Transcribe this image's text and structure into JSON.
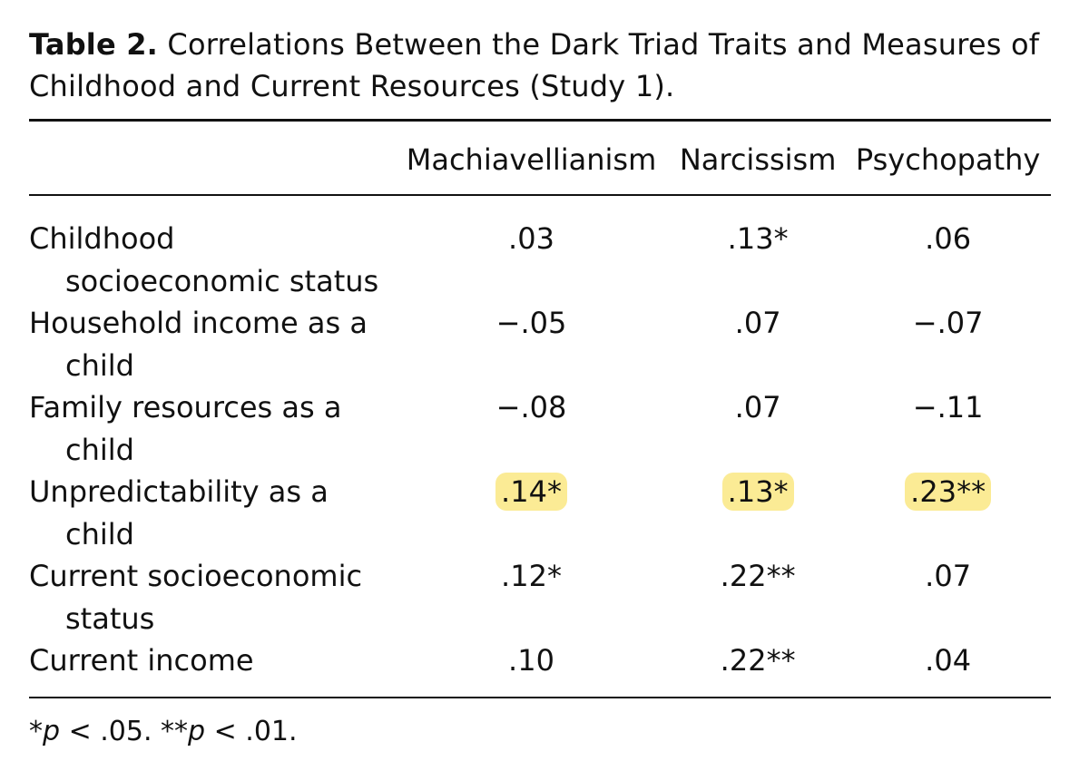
{
  "table": {
    "title": {
      "label": "Table 2.",
      "text": "Correlations Between the Dark Triad Traits and Measures of Childhood and Current Resources (Study 1)."
    },
    "columns": [
      "Machiavellianism",
      "Narcissism",
      "Psychopathy"
    ],
    "highlight_color": "#fbeb95",
    "rows": [
      {
        "label": "Childhood socioeconomic status",
        "cells": [
          ".03",
          ".13*",
          ".06"
        ],
        "highlighted": false
      },
      {
        "label": "Household income as a child",
        "cells": [
          "−.05",
          ".07",
          "−.07"
        ],
        "highlighted": false
      },
      {
        "label": "Family resources as a child",
        "cells": [
          "−.08",
          ".07",
          "−.11"
        ],
        "highlighted": false
      },
      {
        "label": "Unpredictability as a child",
        "cells": [
          ".14*",
          ".13*",
          ".23**"
        ],
        "highlighted": true
      },
      {
        "label": "Current socioeconomic status",
        "cells": [
          ".12*",
          ".22**",
          ".07"
        ],
        "highlighted": false
      },
      {
        "label": "Current income",
        "cells": [
          ".10",
          ".22**",
          ".04"
        ],
        "highlighted": false
      }
    ],
    "footnote": [
      {
        "text": "*",
        "italic": false
      },
      {
        "text": "p",
        "italic": true
      },
      {
        "text": " < .05. **",
        "italic": false
      },
      {
        "text": "p",
        "italic": true
      },
      {
        "text": " < .01.",
        "italic": false
      }
    ]
  }
}
